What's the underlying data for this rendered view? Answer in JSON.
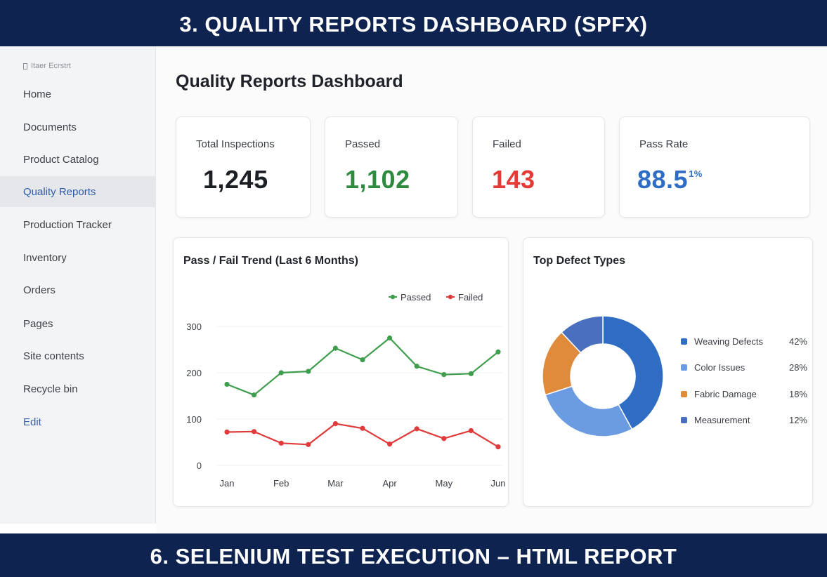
{
  "banner_top": "3. QUALITY REPORTS DASHBOARD (SPFX)",
  "banner_bottom": "6. SELENIUM TEST EXECUTION – HTML REPORT",
  "sidebar": {
    "site_title": "Itaer Ecrstrt",
    "items": [
      {
        "label": "Home"
      },
      {
        "label": "Documents"
      },
      {
        "label": "Product Catalog"
      },
      {
        "label": "Quality Reports",
        "active": true
      },
      {
        "label": "Production Tracker"
      },
      {
        "label": "Inventory"
      },
      {
        "label": "Orders"
      },
      {
        "label": "Pages"
      },
      {
        "label": "Site contents"
      },
      {
        "label": "Recycle bin"
      },
      {
        "label": "Edit"
      }
    ]
  },
  "page_title": "Quality Reports Dashboard",
  "stats": [
    {
      "label": "Total Inspections",
      "value": "1,245",
      "color": "#1b1e23"
    },
    {
      "label": "Passed",
      "value": "1,102",
      "color": "#2e8b3e"
    },
    {
      "label": "Failed",
      "value": "143",
      "color": "#e53935"
    },
    {
      "label": "Pass Rate",
      "value": "88.5",
      "suffix": "1%",
      "color": "#2f6cc4"
    }
  ],
  "trend_panel": {
    "title": "Pass / Fail Trend (Last 6 Months)"
  },
  "defects_panel": {
    "title": "Top Defect Types"
  },
  "chart_data": [
    {
      "type": "line",
      "title": "Pass / Fail Trend (Last 6 Months)",
      "xlabel": "",
      "ylabel": "",
      "ylim": [
        0,
        300
      ],
      "yticks": [
        0,
        100,
        200,
        300
      ],
      "x_tick_labels": [
        "Jan",
        "Feb",
        "Mar",
        "Apr",
        "May",
        "Jun"
      ],
      "grid": true,
      "legend": "top-right",
      "x": [
        0,
        0.5,
        1,
        1.5,
        2,
        2.5,
        3,
        3.5,
        4,
        4.5,
        5
      ],
      "series": [
        {
          "name": "Passed",
          "color": "#3f9e4d",
          "values": [
            175,
            152,
            200,
            203,
            253,
            228,
            275,
            214,
            196,
            198,
            245
          ]
        },
        {
          "name": "Failed",
          "color": "#e03a3a",
          "values": [
            72,
            73,
            48,
            45,
            90,
            80,
            46,
            79,
            58,
            75,
            40
          ]
        }
      ]
    },
    {
      "type": "pie",
      "title": "Top Defect Types",
      "donut": true,
      "legend": "right",
      "slices": [
        {
          "label": "Weaving Defects",
          "value": 42,
          "display": "42%",
          "color": "#2f6cc4"
        },
        {
          "label": "Color Issues",
          "value": 28,
          "display": "28%",
          "color": "#6b9be0"
        },
        {
          "label": "Fabric Damage",
          "value": 18,
          "display": "18%",
          "color": "#e08a3c"
        },
        {
          "label": "Measurement",
          "value": 12,
          "display": "12%",
          "color": "#4a6fbf"
        }
      ]
    }
  ]
}
